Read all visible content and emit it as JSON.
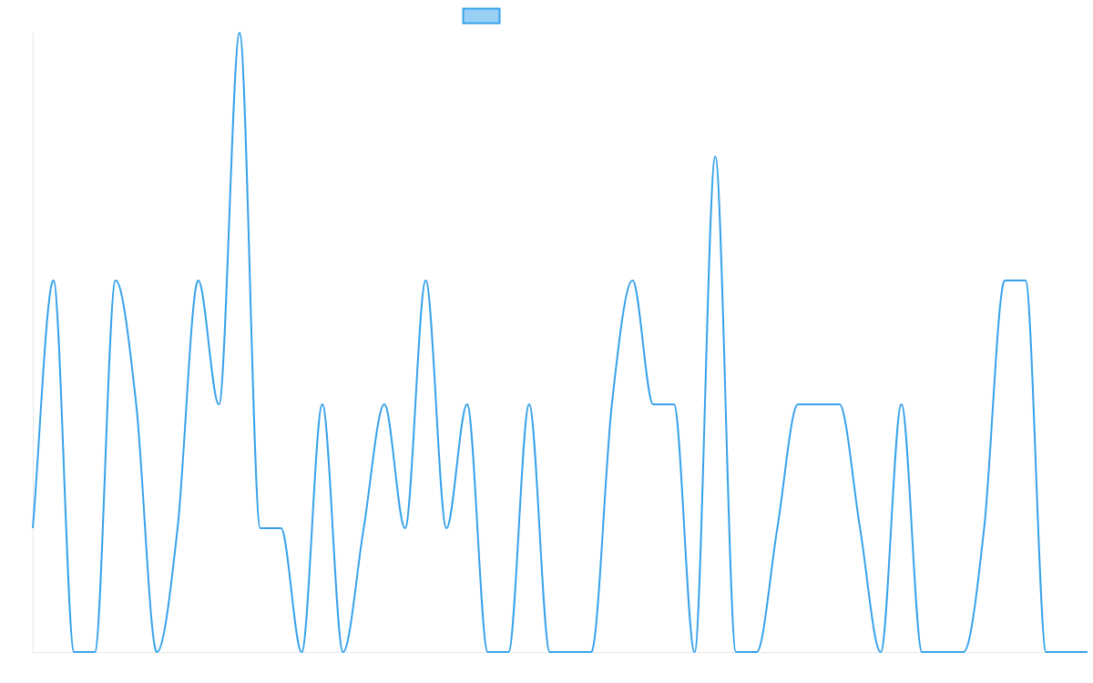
{
  "chart_data": {
    "type": "line",
    "title": "",
    "xlabel": "",
    "ylabel": "",
    "grid": false,
    "legend_position": "top-center",
    "x": [
      0,
      1,
      2,
      3,
      4,
      5,
      6,
      7,
      8,
      9,
      10,
      11,
      12,
      13,
      14,
      15,
      16,
      17,
      18,
      19,
      20,
      21,
      22,
      23,
      24,
      25,
      26,
      27,
      28,
      29,
      30,
      31,
      32,
      33,
      34,
      35,
      36,
      37,
      38,
      39,
      40,
      41,
      42,
      43,
      44,
      45,
      46,
      47,
      48,
      49,
      50,
      51
    ],
    "ylim": [
      0,
      5
    ],
    "series": [
      {
        "color": "#36a2eb",
        "fill": "#9ad0f5",
        "values": [
          1,
          3,
          0,
          0,
          3,
          2,
          0,
          1,
          3,
          2,
          5,
          1,
          1,
          0,
          2,
          0,
          1,
          2,
          1,
          3,
          1,
          2,
          0,
          0,
          2,
          0,
          0,
          0,
          2,
          3,
          2,
          2,
          0,
          4,
          0,
          0,
          1,
          2,
          2,
          2,
          1,
          0,
          2,
          0,
          0,
          0,
          1,
          3,
          3,
          0,
          0,
          0
        ]
      }
    ]
  }
}
